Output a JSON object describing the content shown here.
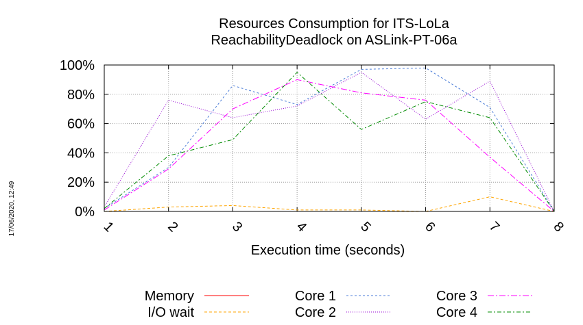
{
  "side_stamp": "17/06/2020, 12:49",
  "chart_data": {
    "type": "line",
    "title": "Resources Consumption for ITS-LoLa",
    "subtitle": "ReachabilityDeadlock on ASLink-PT-06a",
    "xlabel": "Execution time (seconds)",
    "ylabel": "",
    "x": [
      1,
      2,
      3,
      4,
      5,
      6,
      7,
      8
    ],
    "xlim": [
      1,
      8
    ],
    "ylim": [
      0,
      100
    ],
    "yticks": [
      "0%",
      "20%",
      "40%",
      "60%",
      "80%",
      "100%"
    ],
    "xticks": [
      "1",
      "2",
      "3",
      "4",
      "5",
      "6",
      "7",
      "8"
    ],
    "grid": true,
    "legend_position": "bottom",
    "series": [
      {
        "name": "Memory",
        "color": "#ff0000",
        "dash": "",
        "values": [
          0,
          0,
          0,
          0,
          0,
          0,
          0,
          0
        ]
      },
      {
        "name": "I/O wait",
        "color": "#ffa500",
        "dash": "4,3",
        "values": [
          0,
          3,
          4,
          1,
          1,
          0,
          10,
          0
        ]
      },
      {
        "name": "Core 1",
        "color": "#4d7ed8",
        "dash": "3,3",
        "values": [
          2,
          30,
          86,
          73,
          97,
          98,
          71,
          0
        ]
      },
      {
        "name": "Core 2",
        "color": "#9400d3",
        "dash": "1,2",
        "values": [
          3,
          76,
          64,
          72,
          95,
          63,
          89,
          0
        ]
      },
      {
        "name": "Core 3",
        "color": "#ff00ff",
        "dash": "9,3,2,3",
        "values": [
          1,
          29,
          70,
          90,
          81,
          76,
          37,
          0
        ]
      },
      {
        "name": "Core 4",
        "color": "#008b00",
        "dash": "6,3,2,3",
        "values": [
          2,
          38,
          49,
          95,
          56,
          75,
          64,
          0
        ]
      }
    ]
  }
}
